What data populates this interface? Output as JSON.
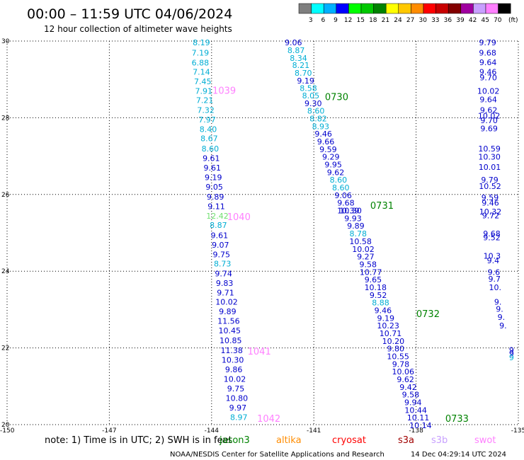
{
  "header": {
    "title": "00:00 – 11:59 UTC 04/06/2024",
    "subtitle": "12 hour collection of altimeter wave heights"
  },
  "legend": {
    "unit": "(ft)",
    "bins": [
      {
        "label": "3",
        "color": "#7f7f7f"
      },
      {
        "label": "6",
        "color": "#00ffff"
      },
      {
        "label": "9",
        "color": "#00b0ff"
      },
      {
        "label": "12",
        "color": "#0000ff"
      },
      {
        "label": "15",
        "color": "#00ff00"
      },
      {
        "label": "18",
        "color": "#00c800"
      },
      {
        "label": "21",
        "color": "#008200"
      },
      {
        "label": "24",
        "color": "#ffff00"
      },
      {
        "label": "27",
        "color": "#ffc800"
      },
      {
        "label": "30",
        "color": "#ff8c00"
      },
      {
        "label": "33",
        "color": "#ff0000"
      },
      {
        "label": "36",
        "color": "#c80000"
      },
      {
        "label": "39",
        "color": "#820000"
      },
      {
        "label": "42",
        "color": "#a000a0"
      },
      {
        "label": "45",
        "color": "#c8a0ff"
      },
      {
        "label": "70",
        "color": "#ff80ff"
      },
      {
        "label": "",
        "color": "#000000"
      }
    ]
  },
  "axes": {
    "lon_ticks": [
      "-150",
      "-147",
      "-144",
      "-141",
      "-138",
      "-135"
    ],
    "lat_ticks": [
      "30",
      "28",
      "26",
      "24",
      "22",
      "20"
    ],
    "lon_range": [
      -150,
      -135
    ],
    "lat_range": [
      20,
      30
    ]
  },
  "colors": {
    "light": "#00aed4",
    "blue": "#0000cc",
    "green": "#70e070",
    "time_green": "#008200",
    "time_pink": "#ff80ff"
  },
  "tracks": [
    {
      "name": "track-a",
      "points": [
        {
          "lon": -144.3,
          "lat": 29.96,
          "value": "8.19",
          "c": "light"
        },
        {
          "lon": -144.33,
          "lat": 29.7,
          "value": "7.19",
          "c": "light"
        },
        {
          "lon": -144.33,
          "lat": 29.44,
          "value": "6.88",
          "c": "light"
        },
        {
          "lon": -144.3,
          "lat": 29.2,
          "value": "7.14",
          "c": "light"
        },
        {
          "lon": -144.26,
          "lat": 28.95,
          "value": "7.45",
          "c": "light"
        },
        {
          "lon": -144.23,
          "lat": 28.7,
          "value": "7.91",
          "c": "light"
        },
        {
          "lon": -144.2,
          "lat": 28.46,
          "value": "7.21",
          "c": "light"
        },
        {
          "lon": -144.17,
          "lat": 28.2,
          "value": "7.32",
          "c": "light"
        },
        {
          "lon": -144.13,
          "lat": 27.95,
          "value": "7.97",
          "c": "light"
        },
        {
          "lon": -144.1,
          "lat": 27.7,
          "value": "8.40",
          "c": "light"
        },
        {
          "lon": -144.07,
          "lat": 27.46,
          "value": "8.67",
          "c": "light"
        },
        {
          "lon": -144.04,
          "lat": 27.2,
          "value": "8.60",
          "c": "light"
        },
        {
          "lon": -144.01,
          "lat": 26.95,
          "value": "9.61",
          "c": "blue"
        },
        {
          "lon": -143.98,
          "lat": 26.7,
          "value": "9.61",
          "c": "blue"
        },
        {
          "lon": -143.95,
          "lat": 26.45,
          "value": "9.19",
          "c": "blue"
        },
        {
          "lon": -143.92,
          "lat": 26.2,
          "value": "9.05",
          "c": "blue"
        },
        {
          "lon": -143.89,
          "lat": 25.94,
          "value": "9.89",
          "c": "blue"
        },
        {
          "lon": -143.86,
          "lat": 25.69,
          "value": "9.11",
          "c": "blue"
        },
        {
          "lon": -143.83,
          "lat": 25.44,
          "value": "12.42",
          "c": "green"
        },
        {
          "lon": -143.8,
          "lat": 25.2,
          "value": "8.87",
          "c": "light"
        },
        {
          "lon": -143.77,
          "lat": 24.94,
          "value": "9.61",
          "c": "blue"
        },
        {
          "lon": -143.74,
          "lat": 24.69,
          "value": "9.07",
          "c": "blue"
        },
        {
          "lon": -143.71,
          "lat": 24.44,
          "value": "9.75",
          "c": "blue"
        },
        {
          "lon": -143.68,
          "lat": 24.2,
          "value": "8.73",
          "c": "light"
        },
        {
          "lon": -143.65,
          "lat": 23.94,
          "value": "9.74",
          "c": "blue"
        },
        {
          "lon": -143.62,
          "lat": 23.69,
          "value": "9.83",
          "c": "blue"
        },
        {
          "lon": -143.59,
          "lat": 23.44,
          "value": "9.71",
          "c": "blue"
        },
        {
          "lon": -143.56,
          "lat": 23.2,
          "value": "10.02",
          "c": "blue"
        },
        {
          "lon": -143.53,
          "lat": 22.95,
          "value": "9.89",
          "c": "blue"
        },
        {
          "lon": -143.5,
          "lat": 22.7,
          "value": "11.56",
          "c": "blue"
        },
        {
          "lon": -143.47,
          "lat": 22.45,
          "value": "10.45",
          "c": "blue"
        },
        {
          "lon": -143.44,
          "lat": 22.2,
          "value": "10.85",
          "c": "blue"
        },
        {
          "lon": -143.41,
          "lat": 21.94,
          "value": "11.38",
          "c": "blue"
        },
        {
          "lon": -143.38,
          "lat": 21.69,
          "value": "10.30",
          "c": "blue"
        },
        {
          "lon": -143.35,
          "lat": 21.44,
          "value": "9.86",
          "c": "blue"
        },
        {
          "lon": -143.32,
          "lat": 21.19,
          "value": "10.02",
          "c": "blue"
        },
        {
          "lon": -143.29,
          "lat": 20.94,
          "value": "9.75",
          "c": "blue"
        },
        {
          "lon": -143.26,
          "lat": 20.69,
          "value": "10.80",
          "c": "blue"
        },
        {
          "lon": -143.23,
          "lat": 20.44,
          "value": "9.97",
          "c": "blue"
        },
        {
          "lon": -143.2,
          "lat": 20.19,
          "value": "8.97",
          "c": "light"
        }
      ]
    },
    {
      "name": "track-b",
      "points": [
        {
          "lon": -141.6,
          "lat": 29.96,
          "value": "9.06",
          "c": "blue"
        },
        {
          "lon": -141.52,
          "lat": 29.76,
          "value": "8.87",
          "c": "light"
        },
        {
          "lon": -141.45,
          "lat": 29.56,
          "value": "8.34",
          "c": "light"
        },
        {
          "lon": -141.38,
          "lat": 29.37,
          "value": "8.21",
          "c": "light"
        },
        {
          "lon": -141.31,
          "lat": 29.17,
          "value": "8.70",
          "c": "light"
        },
        {
          "lon": -141.24,
          "lat": 28.97,
          "value": "9.19",
          "c": "blue"
        },
        {
          "lon": -141.16,
          "lat": 28.77,
          "value": "8.58",
          "c": "light"
        },
        {
          "lon": -141.09,
          "lat": 28.58,
          "value": "8.05",
          "c": "light"
        },
        {
          "lon": -141.02,
          "lat": 28.38,
          "value": "9.30",
          "c": "blue"
        },
        {
          "lon": -140.94,
          "lat": 28.18,
          "value": "8.60",
          "c": "light"
        },
        {
          "lon": -140.87,
          "lat": 27.98,
          "value": "8.82",
          "c": "light"
        },
        {
          "lon": -140.8,
          "lat": 27.78,
          "value": "8.93",
          "c": "light"
        },
        {
          "lon": -140.72,
          "lat": 27.58,
          "value": "9.46",
          "c": "blue"
        },
        {
          "lon": -140.65,
          "lat": 27.38,
          "value": "9.66",
          "c": "blue"
        },
        {
          "lon": -140.58,
          "lat": 27.18,
          "value": "9.59",
          "c": "blue"
        },
        {
          "lon": -140.5,
          "lat": 26.98,
          "value": "9.29",
          "c": "blue"
        },
        {
          "lon": -140.43,
          "lat": 26.78,
          "value": "9.95",
          "c": "blue"
        },
        {
          "lon": -140.36,
          "lat": 26.58,
          "value": "9.62",
          "c": "blue"
        },
        {
          "lon": -140.28,
          "lat": 26.38,
          "value": "8.60",
          "c": "light"
        },
        {
          "lon": -140.21,
          "lat": 26.18,
          "value": "8.60",
          "c": "light"
        },
        {
          "lon": -140.14,
          "lat": 25.98,
          "value": "9.06",
          "c": "blue"
        },
        {
          "lon": -140.06,
          "lat": 25.78,
          "value": "9.68",
          "c": "blue"
        },
        {
          "lon": -139.99,
          "lat": 25.58,
          "value": "10.39",
          "c": "blue"
        },
        {
          "lon": -139.92,
          "lat": 25.58,
          "value": "10.30",
          "c": "blue"
        },
        {
          "lon": -139.85,
          "lat": 25.38,
          "value": "9.93",
          "c": "blue"
        },
        {
          "lon": -139.77,
          "lat": 25.18,
          "value": "9.89",
          "c": "blue"
        },
        {
          "lon": -139.7,
          "lat": 24.98,
          "value": "8.78",
          "c": "light"
        },
        {
          "lon": -139.63,
          "lat": 24.78,
          "value": "10.58",
          "c": "blue"
        },
        {
          "lon": -139.55,
          "lat": 24.58,
          "value": "10.02",
          "c": "blue"
        },
        {
          "lon": -139.48,
          "lat": 24.38,
          "value": "9.27",
          "c": "blue"
        },
        {
          "lon": -139.41,
          "lat": 24.18,
          "value": "9.58",
          "c": "blue"
        },
        {
          "lon": -139.33,
          "lat": 23.98,
          "value": "10.77",
          "c": "blue"
        },
        {
          "lon": -139.26,
          "lat": 23.78,
          "value": "9.65",
          "c": "blue"
        },
        {
          "lon": -139.19,
          "lat": 23.58,
          "value": "10.18",
          "c": "blue"
        },
        {
          "lon": -139.11,
          "lat": 23.38,
          "value": "9.52",
          "c": "blue"
        },
        {
          "lon": -139.04,
          "lat": 23.18,
          "value": "8.88",
          "c": "light"
        },
        {
          "lon": -138.97,
          "lat": 22.98,
          "value": "9.46",
          "c": "blue"
        },
        {
          "lon": -138.89,
          "lat": 22.78,
          "value": "9.19",
          "c": "blue"
        },
        {
          "lon": -138.82,
          "lat": 22.58,
          "value": "10.23",
          "c": "blue"
        },
        {
          "lon": -138.75,
          "lat": 22.38,
          "value": "10.71",
          "c": "blue"
        },
        {
          "lon": -138.67,
          "lat": 22.18,
          "value": "10.20",
          "c": "blue"
        },
        {
          "lon": -138.6,
          "lat": 21.98,
          "value": "9.80",
          "c": "blue"
        },
        {
          "lon": -138.53,
          "lat": 21.78,
          "value": "10.55",
          "c": "blue"
        },
        {
          "lon": -138.45,
          "lat": 21.58,
          "value": "9.78",
          "c": "blue"
        },
        {
          "lon": -138.38,
          "lat": 21.38,
          "value": "10.06",
          "c": "blue"
        },
        {
          "lon": -138.31,
          "lat": 21.18,
          "value": "9.62",
          "c": "blue"
        },
        {
          "lon": -138.23,
          "lat": 20.98,
          "value": "9.42",
          "c": "blue"
        },
        {
          "lon": -138.16,
          "lat": 20.78,
          "value": "9.58",
          "c": "blue"
        },
        {
          "lon": -138.09,
          "lat": 20.58,
          "value": "9.94",
          "c": "blue"
        },
        {
          "lon": -138.01,
          "lat": 20.38,
          "value": "10.44",
          "c": "blue"
        },
        {
          "lon": -137.94,
          "lat": 20.18,
          "value": "10.11",
          "c": "blue"
        },
        {
          "lon": -137.87,
          "lat": 19.98,
          "value": "10.14",
          "c": "blue"
        }
      ]
    },
    {
      "name": "track-c",
      "points": [
        {
          "lon": -135.9,
          "lat": 29.96,
          "value": "9.79",
          "c": "blue"
        },
        {
          "lon": -135.9,
          "lat": 29.7,
          "value": "9.68",
          "c": "blue"
        },
        {
          "lon": -135.89,
          "lat": 29.45,
          "value": "9.64",
          "c": "blue"
        },
        {
          "lon": -135.89,
          "lat": 29.2,
          "value": "9.46",
          "c": "blue"
        },
        {
          "lon": -135.88,
          "lat": 29.05,
          "value": "9.70",
          "c": "blue"
        },
        {
          "lon": -135.88,
          "lat": 28.7,
          "value": "10.02",
          "c": "blue"
        },
        {
          "lon": -135.88,
          "lat": 28.48,
          "value": "9.64",
          "c": "blue"
        },
        {
          "lon": -135.87,
          "lat": 28.2,
          "value": "9.62",
          "c": "blue"
        },
        {
          "lon": -135.86,
          "lat": 28.05,
          "value": "10.02",
          "c": "blue"
        },
        {
          "lon": -135.86,
          "lat": 27.93,
          "value": "9.70",
          "c": "blue"
        },
        {
          "lon": -135.86,
          "lat": 27.72,
          "value": "9.69",
          "c": "blue"
        },
        {
          "lon": -135.85,
          "lat": 27.2,
          "value": "10.59",
          "c": "blue"
        },
        {
          "lon": -135.85,
          "lat": 26.98,
          "value": "10.30",
          "c": "blue"
        },
        {
          "lon": -135.84,
          "lat": 26.72,
          "value": "10.01",
          "c": "blue"
        },
        {
          "lon": -135.84,
          "lat": 26.38,
          "value": "9.79",
          "c": "blue"
        },
        {
          "lon": -135.83,
          "lat": 26.22,
          "value": "10.52",
          "c": "blue"
        },
        {
          "lon": -135.83,
          "lat": 25.92,
          "value": "9.59",
          "c": "blue"
        },
        {
          "lon": -135.82,
          "lat": 25.78,
          "value": "9.46",
          "c": "blue"
        },
        {
          "lon": -135.82,
          "lat": 25.55,
          "value": "10.32",
          "c": "blue"
        },
        {
          "lon": -135.81,
          "lat": 25.45,
          "value": "9.72",
          "c": "blue"
        },
        {
          "lon": -135.78,
          "lat": 24.98,
          "value": "9.68",
          "c": "blue"
        },
        {
          "lon": -135.78,
          "lat": 24.88,
          "value": "9.52",
          "c": "blue"
        },
        {
          "lon": -135.77,
          "lat": 24.4,
          "value": "10.3",
          "c": "blue"
        },
        {
          "lon": -135.74,
          "lat": 24.28,
          "value": "9.4",
          "c": "blue"
        },
        {
          "lon": -135.72,
          "lat": 23.98,
          "value": "9.6",
          "c": "blue"
        },
        {
          "lon": -135.7,
          "lat": 23.8,
          "value": "9.7",
          "c": "blue"
        },
        {
          "lon": -135.68,
          "lat": 23.58,
          "value": "10.",
          "c": "blue"
        },
        {
          "lon": -135.6,
          "lat": 23.2,
          "value": "9.",
          "c": "blue"
        },
        {
          "lon": -135.55,
          "lat": 23.02,
          "value": "9.",
          "c": "blue"
        },
        {
          "lon": -135.5,
          "lat": 22.8,
          "value": "9.",
          "c": "blue"
        },
        {
          "lon": -135.45,
          "lat": 22.58,
          "value": "9.",
          "c": "blue"
        },
        {
          "lon": -135.2,
          "lat": 21.95,
          "value": "9",
          "c": "blue"
        },
        {
          "lon": -135.2,
          "lat": 21.85,
          "value": "9",
          "c": "blue"
        },
        {
          "lon": -135.2,
          "lat": 21.75,
          "value": "9",
          "c": "light"
        }
      ]
    }
  ],
  "time_labels": [
    {
      "lon": -143.63,
      "lat": 28.72,
      "text": "1039",
      "c": "time_pink"
    },
    {
      "lon": -140.33,
      "lat": 28.55,
      "text": "0730",
      "c": "time_green"
    },
    {
      "lon": -139.0,
      "lat": 25.72,
      "text": "0731",
      "c": "time_green"
    },
    {
      "lon": -143.2,
      "lat": 25.42,
      "text": "1040",
      "c": "time_pink"
    },
    {
      "lon": -137.65,
      "lat": 22.9,
      "text": "0732",
      "c": "time_green"
    },
    {
      "lon": -142.6,
      "lat": 21.92,
      "text": "1041",
      "c": "time_pink"
    },
    {
      "lon": -142.32,
      "lat": 20.17,
      "text": "1042",
      "c": "time_pink"
    },
    {
      "lon": -136.8,
      "lat": 20.17,
      "text": "0733",
      "c": "time_green"
    }
  ],
  "footer": {
    "note": "note:  1) Time is in UTC;  2) SWH is in feet",
    "overlap_text": "jason3",
    "satellites": [
      {
        "name": "altika",
        "color": "#ff8c00"
      },
      {
        "name": "cryosat",
        "color": "#ff0000"
      },
      {
        "name": "s3a",
        "color": "#a00000"
      },
      {
        "name": "s3b",
        "color": "#c8a0ff"
      },
      {
        "name": "swot",
        "color": "#ff80ff"
      }
    ],
    "overlap_color": "#008200",
    "credit": "NOAA/NESDIS Center for Satellite Applications and Research",
    "timestamp": "14 Dec 04:29:14 UTC 2024"
  }
}
